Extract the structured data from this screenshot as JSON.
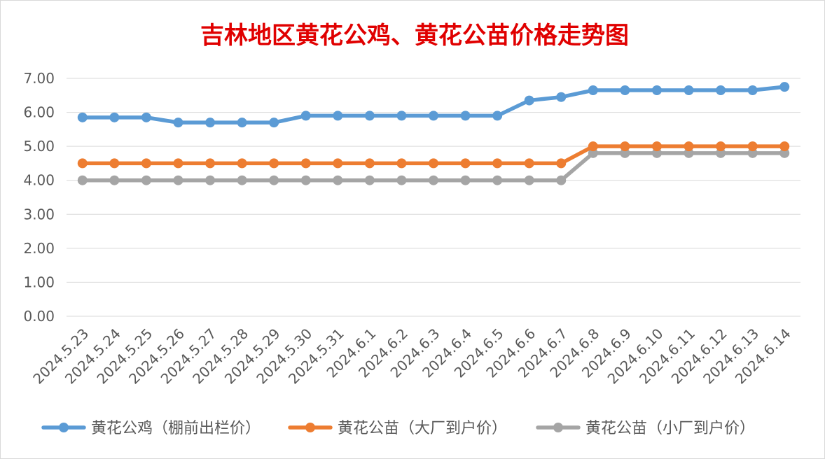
{
  "chart_data": {
    "type": "line",
    "title": "吉林地区黄花公鸡、黄花公苗价格走势图",
    "title_color": "#e00000",
    "xlabel": "",
    "ylabel": "",
    "ylim": [
      0,
      7
    ],
    "y_ticks": [
      "0.00",
      "1.00",
      "2.00",
      "3.00",
      "4.00",
      "5.00",
      "6.00",
      "7.00"
    ],
    "grid": true,
    "legend_position": "bottom",
    "categories": [
      "2024.5.23",
      "2024.5.24",
      "2024.5.25",
      "2024.5.26",
      "2024.5.27",
      "2024.5.28",
      "2024.5.29",
      "2024.5.30",
      "2024.5.31",
      "2024.6.1",
      "2024.6.2",
      "2024.6.3",
      "2024.6.4",
      "2024.6.5",
      "2024.6.6",
      "2024.6.7",
      "2024.6.8",
      "2024.6.9",
      "2024.6.10",
      "2024.6.11",
      "2024.6.12",
      "2024.6.13",
      "2024.6.14"
    ],
    "series": [
      {
        "name": "黄花公鸡（棚前出栏价）",
        "color": "#5b9bd5",
        "values": [
          5.85,
          5.85,
          5.85,
          5.7,
          5.7,
          5.7,
          5.7,
          5.9,
          5.9,
          5.9,
          5.9,
          5.9,
          5.9,
          5.9,
          6.35,
          6.45,
          6.65,
          6.65,
          6.65,
          6.65,
          6.65,
          6.65,
          6.75
        ]
      },
      {
        "name": "黄花公苗（大厂到户价）",
        "color": "#ed7d31",
        "values": [
          4.5,
          4.5,
          4.5,
          4.5,
          4.5,
          4.5,
          4.5,
          4.5,
          4.5,
          4.5,
          4.5,
          4.5,
          4.5,
          4.5,
          4.5,
          4.5,
          5.0,
          5.0,
          5.0,
          5.0,
          5.0,
          5.0,
          5.0
        ]
      },
      {
        "name": "黄花公苗（小厂到户价）",
        "color": "#a5a5a5",
        "values": [
          4.0,
          4.0,
          4.0,
          4.0,
          4.0,
          4.0,
          4.0,
          4.0,
          4.0,
          4.0,
          4.0,
          4.0,
          4.0,
          4.0,
          4.0,
          4.0,
          4.8,
          4.8,
          4.8,
          4.8,
          4.8,
          4.8,
          4.8
        ]
      }
    ]
  }
}
